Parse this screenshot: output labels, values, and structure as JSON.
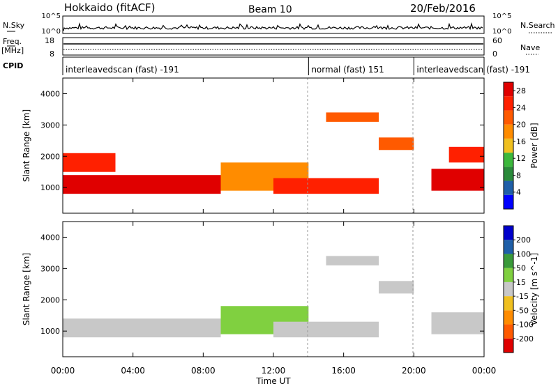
{
  "header": {
    "station": "Hokkaido (fitACF)",
    "beam": "Beam 10",
    "date": "20/Feb/2016"
  },
  "strip": {
    "nsky_label": "N.Sky",
    "nsky_ticks": [
      "10^5",
      "10^0"
    ],
    "nsearch_label": "N.Search",
    "nsearch_ticks": [
      "10^5",
      "10^0"
    ],
    "freq_label": "Freq.",
    "freq_unit": "[MHz]",
    "freq_ticks": [
      "18",
      "8"
    ],
    "nave_label": "Nave",
    "nave_ticks": [
      "60",
      "0"
    ],
    "cpid_label": "CPID"
  },
  "cpid_segments": [
    {
      "label": "interleavedscan (fast) -191",
      "start_h": 0,
      "end_h": 14
    },
    {
      "label": "normal (fast) 151",
      "start_h": 14,
      "end_h": 20
    },
    {
      "label": "interleavedscan (fast) -191",
      "start_h": 20,
      "end_h": 24
    }
  ],
  "colors": {
    "power": [
      "#0000ff",
      "#1f5fa8",
      "#2a8a3a",
      "#3cb83c",
      "#f0c020",
      "#ff8c00",
      "#ff5a00",
      "#ff2000",
      "#e00000"
    ],
    "velocity": [
      "#e00000",
      "#ff5a00",
      "#ff8c00",
      "#f0c020",
      "#c8c8c8",
      "#80d040",
      "#3a9a3a",
      "#1f5fa8",
      "#0000cc"
    ]
  },
  "chart_data": [
    {
      "type": "heatmap",
      "title": "",
      "xlabel": "Time UT",
      "ylabel": "Slant Range [km]",
      "xlim": [
        0,
        24
      ],
      "ylim": [
        180,
        4500
      ],
      "x_ticks": [
        "00:00",
        "04:00",
        "08:00",
        "12:00",
        "16:00",
        "20:00",
        "00:00"
      ],
      "y_ticks": [
        "1000",
        "2000",
        "3000",
        "4000"
      ],
      "colorbar_label": "Power [dB]",
      "colorbar_ticks": [
        "4",
        "8",
        "12",
        "16",
        "20",
        "24",
        "28"
      ],
      "colorbar_range": [
        0,
        30
      ],
      "regions": [
        {
          "x": [
            0,
            9
          ],
          "y": [
            800,
            1400
          ],
          "value": 28
        },
        {
          "x": [
            0,
            3
          ],
          "y": [
            1500,
            2100
          ],
          "value": 26
        },
        {
          "x": [
            9,
            14
          ],
          "y": [
            900,
            1800
          ],
          "value": 18
        },
        {
          "x": [
            12,
            18
          ],
          "y": [
            800,
            1300
          ],
          "value": 26
        },
        {
          "x": [
            15,
            18
          ],
          "y": [
            3100,
            3400
          ],
          "value": 22
        },
        {
          "x": [
            18,
            20
          ],
          "y": [
            2200,
            2600
          ],
          "value": 22
        },
        {
          "x": [
            21,
            24
          ],
          "y": [
            900,
            1600
          ],
          "value": 27
        },
        {
          "x": [
            22,
            24
          ],
          "y": [
            1800,
            2300
          ],
          "value": 24
        }
      ]
    },
    {
      "type": "heatmap",
      "title": "",
      "xlabel": "Time UT",
      "ylabel": "Slant Range [km]",
      "xlim": [
        0,
        24
      ],
      "ylim": [
        180,
        4500
      ],
      "x_ticks": [
        "00:00",
        "04:00",
        "08:00",
        "12:00",
        "16:00",
        "20:00",
        "00:00"
      ],
      "y_ticks": [
        "1000",
        "2000",
        "3000",
        "4000"
      ],
      "colorbar_label": "Velocity [m s^-1]",
      "colorbar_ticks": [
        "200",
        "100",
        "50",
        "15",
        "-15",
        "-50",
        "-100",
        "-200"
      ],
      "colorbar_range": [
        -250,
        250
      ],
      "regions": [
        {
          "x": [
            0,
            9
          ],
          "y": [
            800,
            1400
          ],
          "value": 0
        },
        {
          "x": [
            9,
            14
          ],
          "y": [
            900,
            1800
          ],
          "value": 30
        },
        {
          "x": [
            12,
            18
          ],
          "y": [
            800,
            1300
          ],
          "value": 25
        },
        {
          "x": [
            15,
            18
          ],
          "y": [
            3100,
            3400
          ],
          "value": 0
        },
        {
          "x": [
            18,
            20
          ],
          "y": [
            2200,
            2600
          ],
          "value": 0
        },
        {
          "x": [
            21,
            24
          ],
          "y": [
            900,
            1600
          ],
          "value": 0
        }
      ]
    }
  ]
}
